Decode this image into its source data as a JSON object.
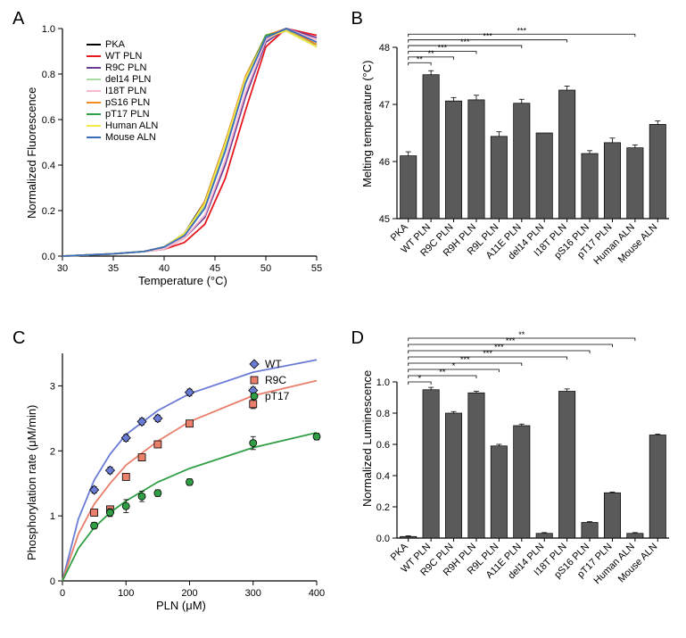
{
  "palette": {
    "PKA": "#000000",
    "WT PLN": "#e6191e",
    "R9C PLN": "#6b3b96",
    "del14 PLN": "#a9dca5",
    "I18T PLN": "#f7b7cc",
    "pS16 PLN": "#f28c1f",
    "pT17 PLN": "#2f9e44",
    "Human ALN": "#f7e948",
    "Mouse ALN": "#3b6bbf"
  },
  "panelA": {
    "label": "A",
    "type": "line",
    "xlabel": "Temperature (°C)",
    "ylabel": "Normalized Fluorescence",
    "xlim": [
      30,
      55
    ],
    "ylim": [
      0,
      1.0
    ],
    "xticks": [
      30,
      35,
      40,
      45,
      50,
      55
    ],
    "yticks": [
      0.0,
      0.2,
      0.4,
      0.6,
      0.8,
      1.0
    ],
    "legend": [
      "PKA",
      "WT PLN",
      "R9C PLN",
      "del14 PLN",
      "I18T PLN",
      "pS16 PLN",
      "pT17 PLN",
      "Human ALN",
      "Mouse ALN"
    ],
    "series": {
      "PKA": [
        [
          30,
          0.0
        ],
        [
          35,
          0.01
        ],
        [
          38,
          0.02
        ],
        [
          40,
          0.04
        ],
        [
          42,
          0.1
        ],
        [
          44,
          0.24
        ],
        [
          46,
          0.5
        ],
        [
          48,
          0.78
        ],
        [
          50,
          0.96
        ],
        [
          52,
          0.99
        ],
        [
          55,
          0.93
        ]
      ],
      "WT PLN": [
        [
          30,
          0.0
        ],
        [
          35,
          0.01
        ],
        [
          38,
          0.02
        ],
        [
          40,
          0.03
        ],
        [
          42,
          0.06
        ],
        [
          44,
          0.14
        ],
        [
          46,
          0.34
        ],
        [
          48,
          0.64
        ],
        [
          50,
          0.92
        ],
        [
          52,
          1.0
        ],
        [
          55,
          0.97
        ]
      ],
      "R9C PLN": [
        [
          30,
          0.0
        ],
        [
          35,
          0.01
        ],
        [
          38,
          0.02
        ],
        [
          40,
          0.03
        ],
        [
          42,
          0.08
        ],
        [
          44,
          0.17
        ],
        [
          46,
          0.4
        ],
        [
          48,
          0.7
        ],
        [
          50,
          0.94
        ],
        [
          52,
          1.0
        ],
        [
          55,
          0.96
        ]
      ],
      "del14 PLN": [
        [
          30,
          0.0
        ],
        [
          35,
          0.01
        ],
        [
          38,
          0.02
        ],
        [
          40,
          0.04
        ],
        [
          42,
          0.1
        ],
        [
          44,
          0.22
        ],
        [
          46,
          0.48
        ],
        [
          48,
          0.77
        ],
        [
          50,
          0.96
        ],
        [
          52,
          1.0
        ],
        [
          55,
          0.92
        ]
      ],
      "I18T PLN": [
        [
          30,
          0.0
        ],
        [
          35,
          0.01
        ],
        [
          38,
          0.02
        ],
        [
          40,
          0.03
        ],
        [
          42,
          0.08
        ],
        [
          44,
          0.18
        ],
        [
          46,
          0.42
        ],
        [
          48,
          0.72
        ],
        [
          50,
          0.95
        ],
        [
          52,
          1.0
        ],
        [
          55,
          0.95
        ]
      ],
      "pS16 PLN": [
        [
          30,
          0.0
        ],
        [
          35,
          0.01
        ],
        [
          38,
          0.02
        ],
        [
          40,
          0.04
        ],
        [
          42,
          0.09
        ],
        [
          44,
          0.24
        ],
        [
          46,
          0.5
        ],
        [
          48,
          0.79
        ],
        [
          50,
          0.97
        ],
        [
          52,
          1.0
        ],
        [
          55,
          0.93
        ]
      ],
      "pT17 PLN": [
        [
          30,
          0.0
        ],
        [
          35,
          0.01
        ],
        [
          38,
          0.02
        ],
        [
          40,
          0.04
        ],
        [
          42,
          0.1
        ],
        [
          44,
          0.23
        ],
        [
          46,
          0.49
        ],
        [
          48,
          0.78
        ],
        [
          50,
          0.97
        ],
        [
          52,
          0.99
        ],
        [
          55,
          0.92
        ]
      ],
      "Human ALN": [
        [
          30,
          0.0
        ],
        [
          35,
          0.01
        ],
        [
          38,
          0.02
        ],
        [
          40,
          0.04
        ],
        [
          42,
          0.1
        ],
        [
          44,
          0.23
        ],
        [
          46,
          0.49
        ],
        [
          48,
          0.78
        ],
        [
          50,
          0.96
        ],
        [
          52,
          0.99
        ],
        [
          55,
          0.92
        ]
      ],
      "Mouse ALN": [
        [
          30,
          0.0
        ],
        [
          35,
          0.01
        ],
        [
          38,
          0.02
        ],
        [
          40,
          0.04
        ],
        [
          42,
          0.09
        ],
        [
          44,
          0.21
        ],
        [
          46,
          0.46
        ],
        [
          48,
          0.76
        ],
        [
          50,
          0.96
        ],
        [
          52,
          1.0
        ],
        [
          55,
          0.94
        ]
      ]
    }
  },
  "panelB": {
    "label": "B",
    "type": "bar",
    "ylabel": "Melting temperature (°C)",
    "ylim": [
      45,
      48
    ],
    "yticks": [
      45,
      46,
      47,
      48
    ],
    "bar_color": "#5a5a5a",
    "categories": [
      "PKA",
      "WT PLN",
      "R9C PLN",
      "R9H PLN",
      "R9L PLN",
      "A11E PLN",
      "del14 PLN",
      "I18T PLN",
      "pS16 PLN",
      "pT17 PLN",
      "Human ALN",
      "Mouse ALN"
    ],
    "values": [
      46.1,
      47.52,
      47.06,
      47.08,
      46.44,
      47.02,
      46.5,
      47.25,
      46.14,
      46.33,
      46.24,
      46.65
    ],
    "errors": [
      0.07,
      0.07,
      0.06,
      0.08,
      0.08,
      0.07,
      0.0,
      0.07,
      0.05,
      0.08,
      0.05,
      0.06
    ],
    "sig": [
      {
        "from": 1,
        "to": 2,
        "stars": "**",
        "y": 47.73
      },
      {
        "from": 1,
        "to": 3,
        "stars": "**",
        "y": 47.83
      },
      {
        "from": 1,
        "to": 4,
        "stars": "***",
        "y": 47.93
      },
      {
        "from": 1,
        "to": 6,
        "stars": "***",
        "y": 48.03
      },
      {
        "from": 1,
        "to": 8,
        "stars": "***",
        "y": 48.13
      },
      {
        "from": 1,
        "to": 11,
        "stars": "***",
        "y": 48.23
      }
    ]
  },
  "panelC": {
    "label": "C",
    "type": "scatter",
    "xlabel": "PLN (μM)",
    "ylabel": "Phosphorylation rate (μM/min)",
    "xlim": [
      0,
      400
    ],
    "ylim": [
      0,
      3.5
    ],
    "xticks": [
      0,
      100,
      200,
      300,
      400
    ],
    "yticks": [
      0,
      1,
      2,
      3
    ],
    "series": {
      "WT": {
        "color": "#6a7bd6",
        "marker": "diamond",
        "fit": [
          [
            0,
            0
          ],
          [
            25,
            0.95
          ],
          [
            50,
            1.55
          ],
          [
            75,
            1.95
          ],
          [
            100,
            2.25
          ],
          [
            150,
            2.62
          ],
          [
            200,
            2.88
          ],
          [
            300,
            3.21
          ],
          [
            400,
            3.4
          ]
        ],
        "points": [
          [
            50,
            1.4,
            0.05
          ],
          [
            75,
            1.7,
            0.05
          ],
          [
            100,
            2.2,
            0.05
          ],
          [
            125,
            2.45,
            0.05
          ],
          [
            150,
            2.5,
            0.05
          ],
          [
            200,
            2.9,
            0.05
          ],
          [
            300,
            2.93,
            0.05
          ]
        ]
      },
      "R9C": {
        "color": "#ea7f6c",
        "marker": "square",
        "fit": [
          [
            0,
            0
          ],
          [
            25,
            0.72
          ],
          [
            50,
            1.18
          ],
          [
            75,
            1.5
          ],
          [
            100,
            1.78
          ],
          [
            150,
            2.15
          ],
          [
            200,
            2.45
          ],
          [
            300,
            2.85
          ],
          [
            400,
            3.08
          ]
        ],
        "points": [
          [
            50,
            1.05,
            0.05
          ],
          [
            75,
            1.1,
            0.05
          ],
          [
            100,
            1.6,
            0.05
          ],
          [
            125,
            1.9,
            0.05
          ],
          [
            150,
            2.1,
            0.05
          ],
          [
            200,
            2.42,
            0.05
          ],
          [
            300,
            2.72,
            0.07
          ]
        ]
      },
      "pT17": {
        "color": "#2f9e44",
        "marker": "circle",
        "fit": [
          [
            0,
            0
          ],
          [
            25,
            0.5
          ],
          [
            50,
            0.82
          ],
          [
            75,
            1.05
          ],
          [
            100,
            1.23
          ],
          [
            150,
            1.52
          ],
          [
            200,
            1.73
          ],
          [
            300,
            2.05
          ],
          [
            400,
            2.28
          ]
        ],
        "points": [
          [
            50,
            0.85,
            0.05
          ],
          [
            75,
            1.05,
            0.06
          ],
          [
            100,
            1.15,
            0.1
          ],
          [
            125,
            1.3,
            0.08
          ],
          [
            150,
            1.35,
            0.05
          ],
          [
            200,
            1.52,
            0.05
          ],
          [
            300,
            2.12,
            0.1
          ],
          [
            400,
            2.22,
            0.05
          ]
        ]
      }
    }
  },
  "panelD": {
    "label": "D",
    "type": "bar",
    "ylabel": "Normalized Luminescence",
    "ylim": [
      0,
      1.0
    ],
    "yticks": [
      0.0,
      0.2,
      0.4,
      0.6,
      0.8,
      1.0
    ],
    "bar_color": "#5a5a5a",
    "categories": [
      "PKA",
      "WT PLN",
      "R9C PLN",
      "R9H PLN",
      "R9L PLN",
      "A11E PLN",
      "del14 PLN",
      "I18T PLN",
      "pS16 PLN",
      "pT17 PLN",
      "Human ALN",
      "Mouse ALN"
    ],
    "values": [
      0.01,
      0.95,
      0.8,
      0.93,
      0.59,
      0.72,
      0.03,
      0.94,
      0.1,
      0.29,
      0.03,
      0.66
    ],
    "errors": [
      0.005,
      0.015,
      0.01,
      0.01,
      0.01,
      0.01,
      0.005,
      0.015,
      0.005,
      0.005,
      0.005,
      0.005
    ],
    "sig": [
      {
        "from": 1,
        "to": 2,
        "stars": "*",
        "y": 1.0
      },
      {
        "from": 1,
        "to": 4,
        "stars": "**",
        "y": 1.04
      },
      {
        "from": 1,
        "to": 5,
        "stars": "*",
        "y": 1.08
      },
      {
        "from": 1,
        "to": 6,
        "stars": "***",
        "y": 1.12
      },
      {
        "from": 1,
        "to": 8,
        "stars": "***",
        "y": 1.16
      },
      {
        "from": 1,
        "to": 9,
        "stars": "***",
        "y": 1.2
      },
      {
        "from": 1,
        "to": 10,
        "stars": "***",
        "y": 1.24
      },
      {
        "from": 1,
        "to": 11,
        "stars": "**",
        "y": 1.28
      }
    ]
  }
}
